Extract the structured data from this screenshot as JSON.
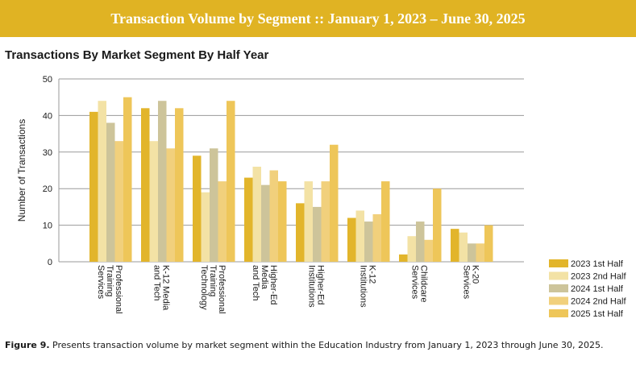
{
  "header": {
    "banner_title": "Transaction Volume by Segment :: January 1, 2023 – June 30, 2025"
  },
  "caption": {
    "label": "Figure 9.",
    "text": "Presents transaction volume by market segment within the Education Industry from January 1, 2023 through June 30, 2025."
  },
  "chart_data": {
    "type": "bar",
    "title": "Transactions By Market Segment By Half Year",
    "xlabel": "",
    "ylabel": "Number of Transactions",
    "ylim": [
      0,
      50
    ],
    "yticks": [
      0,
      10,
      20,
      30,
      40,
      50
    ],
    "grid": true,
    "legend_position": "bottom-right",
    "categories": [
      [
        "Professional",
        "Training",
        "Services"
      ],
      [
        "K-12 Media",
        "and Tech"
      ],
      [
        "Professional",
        "Training",
        "Technology"
      ],
      [
        "Higher-Ed",
        "Media",
        "and Tech"
      ],
      [
        "Higher-Ed",
        "Institutions"
      ],
      [
        "K-12",
        "Institutions"
      ],
      [
        "Childcare",
        "Services"
      ],
      [
        "K-20",
        "Services"
      ]
    ],
    "series": [
      {
        "name": "2023 1st Half",
        "color": "#e2b52b",
        "values": [
          41,
          42,
          29,
          23,
          16,
          12,
          2,
          9
        ]
      },
      {
        "name": "2023 2nd Half",
        "color": "#f3e2a5",
        "values": [
          44,
          33,
          19,
          26,
          22,
          14,
          7,
          8
        ]
      },
      {
        "name": "2024 1st Half",
        "color": "#cdc49a",
        "values": [
          38,
          44,
          31,
          21,
          15,
          11,
          11,
          5
        ]
      },
      {
        "name": "2024 2nd Half",
        "color": "#f1d07c",
        "values": [
          33,
          31,
          22,
          25,
          22,
          13,
          6,
          5
        ]
      },
      {
        "name": "2025 1st Half",
        "color": "#eec659",
        "values": [
          45,
          42,
          44,
          22,
          32,
          22,
          20,
          10
        ]
      }
    ]
  }
}
